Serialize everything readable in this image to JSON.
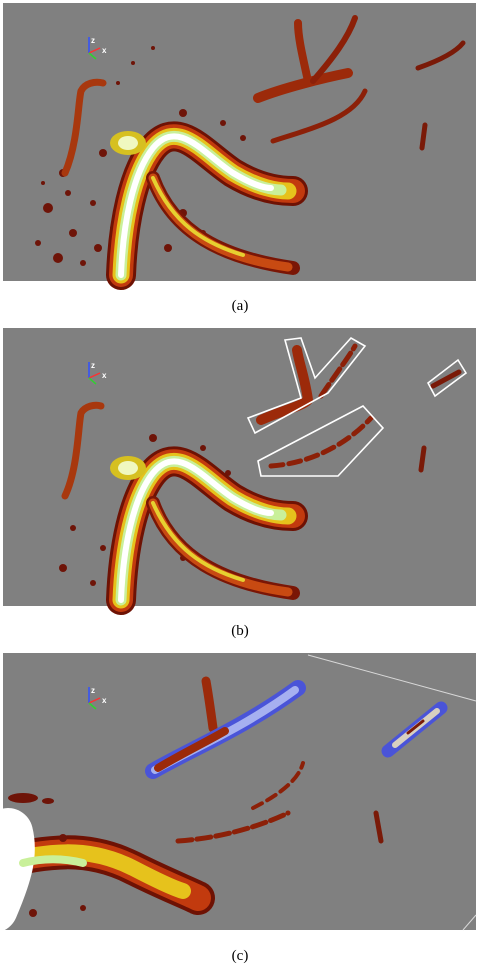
{
  "panels": [
    {
      "caption": "(a)",
      "axis_labels": [
        "z",
        "x"
      ]
    },
    {
      "caption": "(b)",
      "axis_labels": [
        "z",
        "x"
      ]
    },
    {
      "caption": "(c)",
      "axis_labels": [
        "z",
        "x"
      ]
    }
  ]
}
